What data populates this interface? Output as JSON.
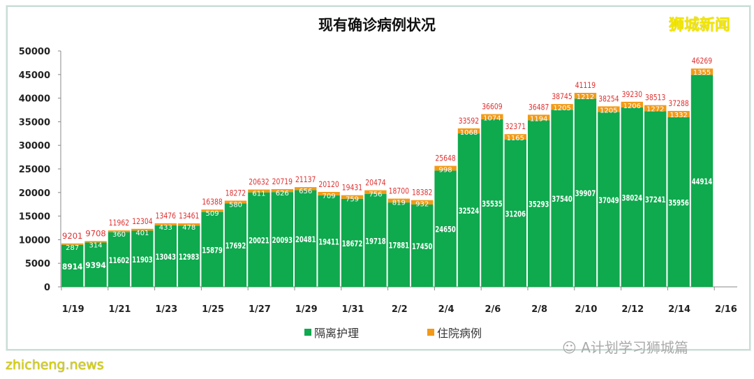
{
  "chart_data": {
    "type": "bar",
    "stacked": true,
    "title": "现有确诊病例状况",
    "categories": [
      "1/19",
      "1/20",
      "1/21",
      "1/22",
      "1/23",
      "1/24",
      "1/25",
      "1/26",
      "1/27",
      "1/28",
      "1/29",
      "1/30",
      "1/31",
      "2/1",
      "2/2",
      "2/3",
      "2/4",
      "2/5",
      "2/6",
      "2/7",
      "2/8",
      "2/9",
      "2/10",
      "2/11",
      "2/12",
      "2/13",
      "2/14",
      "2/15"
    ],
    "x_tick_labels": [
      "1/19",
      "1/21",
      "1/23",
      "1/25",
      "1/27",
      "1/29",
      "1/31",
      "2/2",
      "2/4",
      "2/6",
      "2/8",
      "2/10",
      "2/12",
      "2/14",
      "2/16"
    ],
    "series": [
      {
        "name": "隔离护理",
        "color": "#0fa94e",
        "values": [
          8914,
          9394,
          11602,
          11903,
          13043,
          12983,
          15879,
          17692,
          20021,
          20093,
          20481,
          19411,
          18672,
          19718,
          17881,
          17450,
          24650,
          32524,
          35535,
          31206,
          35293,
          37540,
          39907,
          37049,
          38024,
          37241,
          35956,
          44914
        ]
      },
      {
        "name": "住院病例",
        "color": "#f29a17",
        "values": [
          287,
          314,
          360,
          401,
          433,
          478,
          509,
          580,
          611,
          626,
          656,
          709,
          759,
          756,
          819,
          932,
          998,
          1068,
          1074,
          1165,
          1194,
          1205,
          1212,
          1205,
          1206,
          1272,
          1332,
          1355
        ]
      }
    ],
    "totals": [
      9201,
      9708,
      11962,
      12304,
      13476,
      13461,
      16388,
      18272,
      20632,
      20719,
      21137,
      20120,
      19431,
      20474,
      18700,
      18382,
      25648,
      33592,
      36609,
      32371,
      36487,
      38745,
      41119,
      38254,
      39230,
      38513,
      37288,
      46269
    ],
    "total_label_color": "#e03030",
    "ylim": [
      0,
      50000
    ],
    "y_ticks": [
      0,
      5000,
      10000,
      15000,
      20000,
      25000,
      30000,
      35000,
      40000,
      45000,
      50000
    ],
    "grid": false,
    "legend_position": "bottom"
  },
  "brand": "狮城新闻",
  "wechat_source": "A计划学习狮城篇",
  "watermark": "zhicheng.news"
}
